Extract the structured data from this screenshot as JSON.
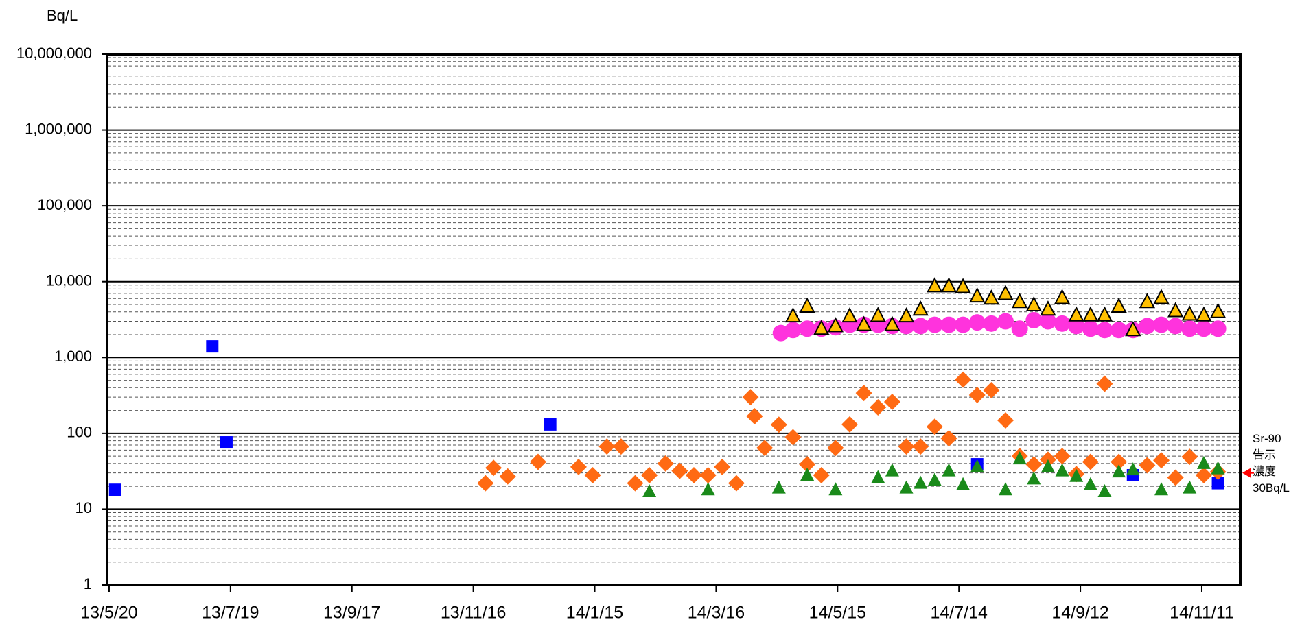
{
  "chart_data": {
    "type": "scatter",
    "y_label": "Bq/L",
    "ylog": true,
    "ylim": [
      1,
      10000000
    ],
    "yticks": [
      1,
      10,
      100,
      {
        "value": 1000,
        "label": "1,000"
      },
      {
        "value": 10000,
        "label": "10,000"
      },
      {
        "value": 100000,
        "label": "100,000"
      },
      {
        "value": 1000000,
        "label": "1,000,000"
      },
      {
        "value": 10000000,
        "label": "10,000,000"
      }
    ],
    "grid": true,
    "minor_grid": true,
    "xlim": [
      "13/5/19",
      "14/11/30"
    ],
    "xticks": [
      "13/5/20",
      "13/7/19",
      "13/9/17",
      "13/11/16",
      "14/1/15",
      "14/3/16",
      "14/5/15",
      "14/7/14",
      "14/9/12",
      "14/11/11"
    ],
    "annotation": {
      "lines": [
        "Sr-90",
        "告示",
        "濃度",
        "30Bq/L"
      ],
      "value": 30,
      "color": "#ff0000"
    },
    "series": [
      {
        "marker": "square",
        "color": "#0000ff",
        "x": [
          "13/5/23",
          "13/7/10",
          "13/7/17",
          "13/12/24",
          "14/7/23",
          "14/10/8",
          "14/11/19"
        ],
        "values": [
          18,
          1400,
          76,
          131,
          39,
          28,
          22
        ]
      },
      {
        "marker": "diamond",
        "color": "#ff6a13",
        "x": [
          "13/11/22",
          "13/11/26",
          "13/12/3",
          "13/12/18",
          "14/1/7",
          "14/1/14",
          "14/1/21",
          "14/1/28",
          "14/2/4",
          "14/2/11",
          "14/2/19",
          "14/2/26",
          "14/3/5",
          "14/3/12",
          "14/3/19",
          "14/3/26",
          "14/4/2",
          "14/4/4",
          "14/4/9",
          "14/4/16",
          "14/4/23",
          "14/4/30",
          "14/5/7",
          "14/5/14",
          "14/5/21",
          "14/5/28",
          "14/6/4",
          "14/6/11",
          "14/6/18",
          "14/6/25",
          "14/7/2",
          "14/7/9",
          "14/7/16",
          "14/7/23",
          "14/7/30",
          "14/8/6",
          "14/8/13",
          "14/8/20",
          "14/8/27",
          "14/9/3",
          "14/9/10",
          "14/9/17",
          "14/9/24",
          "14/10/1",
          "14/10/15",
          "14/10/22",
          "14/10/29",
          "14/11/5",
          "14/11/12",
          "14/11/19"
        ],
        "values": [
          22,
          35,
          27,
          42,
          36,
          28,
          67,
          67,
          22,
          28,
          40,
          32,
          28,
          28,
          36,
          22,
          300,
          168,
          64,
          130,
          89,
          39,
          28,
          64,
          131,
          340,
          220,
          260,
          67,
          67,
          122,
          86,
          510,
          320,
          370,
          148,
          50,
          39,
          45,
          50,
          29,
          42,
          450,
          42,
          38,
          44,
          26,
          49,
          28,
          31
        ]
      },
      {
        "marker": "triangle",
        "color": "#1a8a1a",
        "x": [
          "14/2/11",
          "14/3/12",
          "14/4/16",
          "14/4/30",
          "14/5/14",
          "14/6/4",
          "14/6/11",
          "14/6/18",
          "14/6/25",
          "14/7/2",
          "14/7/9",
          "14/7/16",
          "14/7/23",
          "14/8/6",
          "14/8/13",
          "14/8/20",
          "14/8/27",
          "14/9/3",
          "14/9/10",
          "14/9/17",
          "14/9/24",
          "14/10/1",
          "14/10/8",
          "14/10/22",
          "14/11/5",
          "14/11/12",
          "14/11/19"
        ],
        "values": [
          17,
          18,
          19,
          28,
          18,
          26,
          32,
          19,
          22,
          24,
          32,
          21,
          36,
          18,
          46,
          25,
          36,
          32,
          27,
          21,
          17,
          31,
          33,
          18,
          19,
          40,
          34
        ]
      },
      {
        "marker": "circle",
        "color": "#ff33dd",
        "x": [
          "14/4/17",
          "14/4/23",
          "14/4/30",
          "14/5/7",
          "14/5/14",
          "14/5/21",
          "14/5/28",
          "14/6/4",
          "14/6/11",
          "14/6/18",
          "14/6/25",
          "14/7/2",
          "14/7/9",
          "14/7/16",
          "14/7/23",
          "14/7/30",
          "14/8/6",
          "14/8/13",
          "14/8/20",
          "14/8/27",
          "14/9/3",
          "14/9/10",
          "14/9/17",
          "14/9/24",
          "14/10/1",
          "14/10/8",
          "14/10/15",
          "14/10/22",
          "14/10/29",
          "14/11/5",
          "14/11/12",
          "14/11/19"
        ],
        "values": [
          2100,
          2300,
          2400,
          2400,
          2500,
          2700,
          2700,
          2700,
          2600,
          2600,
          2600,
          2700,
          2700,
          2700,
          2900,
          2800,
          3000,
          2400,
          3100,
          3000,
          2800,
          2600,
          2400,
          2300,
          2300,
          2300,
          2600,
          2700,
          2600,
          2400,
          2400,
          2400
        ]
      },
      {
        "marker": "triangle",
        "color": "#ffc000",
        "edge": "#000000",
        "x": [
          "14/4/23",
          "14/4/30",
          "14/5/7",
          "14/5/14",
          "14/5/21",
          "14/5/28",
          "14/6/4",
          "14/6/11",
          "14/6/18",
          "14/6/25",
          "14/7/2",
          "14/7/9",
          "14/7/16",
          "14/7/23",
          "14/7/30",
          "14/8/6",
          "14/8/13",
          "14/8/20",
          "14/8/27",
          "14/9/3",
          "14/9/10",
          "14/9/17",
          "14/9/24",
          "14/10/1",
          "14/10/8",
          "14/10/15",
          "14/10/22",
          "14/10/29",
          "14/11/5",
          "14/11/12",
          "14/11/19"
        ],
        "values": [
          3500,
          4700,
          2400,
          2600,
          3500,
          2700,
          3550,
          2700,
          3500,
          4300,
          8700,
          8700,
          8500,
          6400,
          6000,
          6900,
          5400,
          4900,
          4300,
          6100,
          3600,
          3600,
          3600,
          4700,
          2300,
          5400,
          6100,
          4100,
          3700,
          3600,
          4000
        ]
      }
    ]
  }
}
